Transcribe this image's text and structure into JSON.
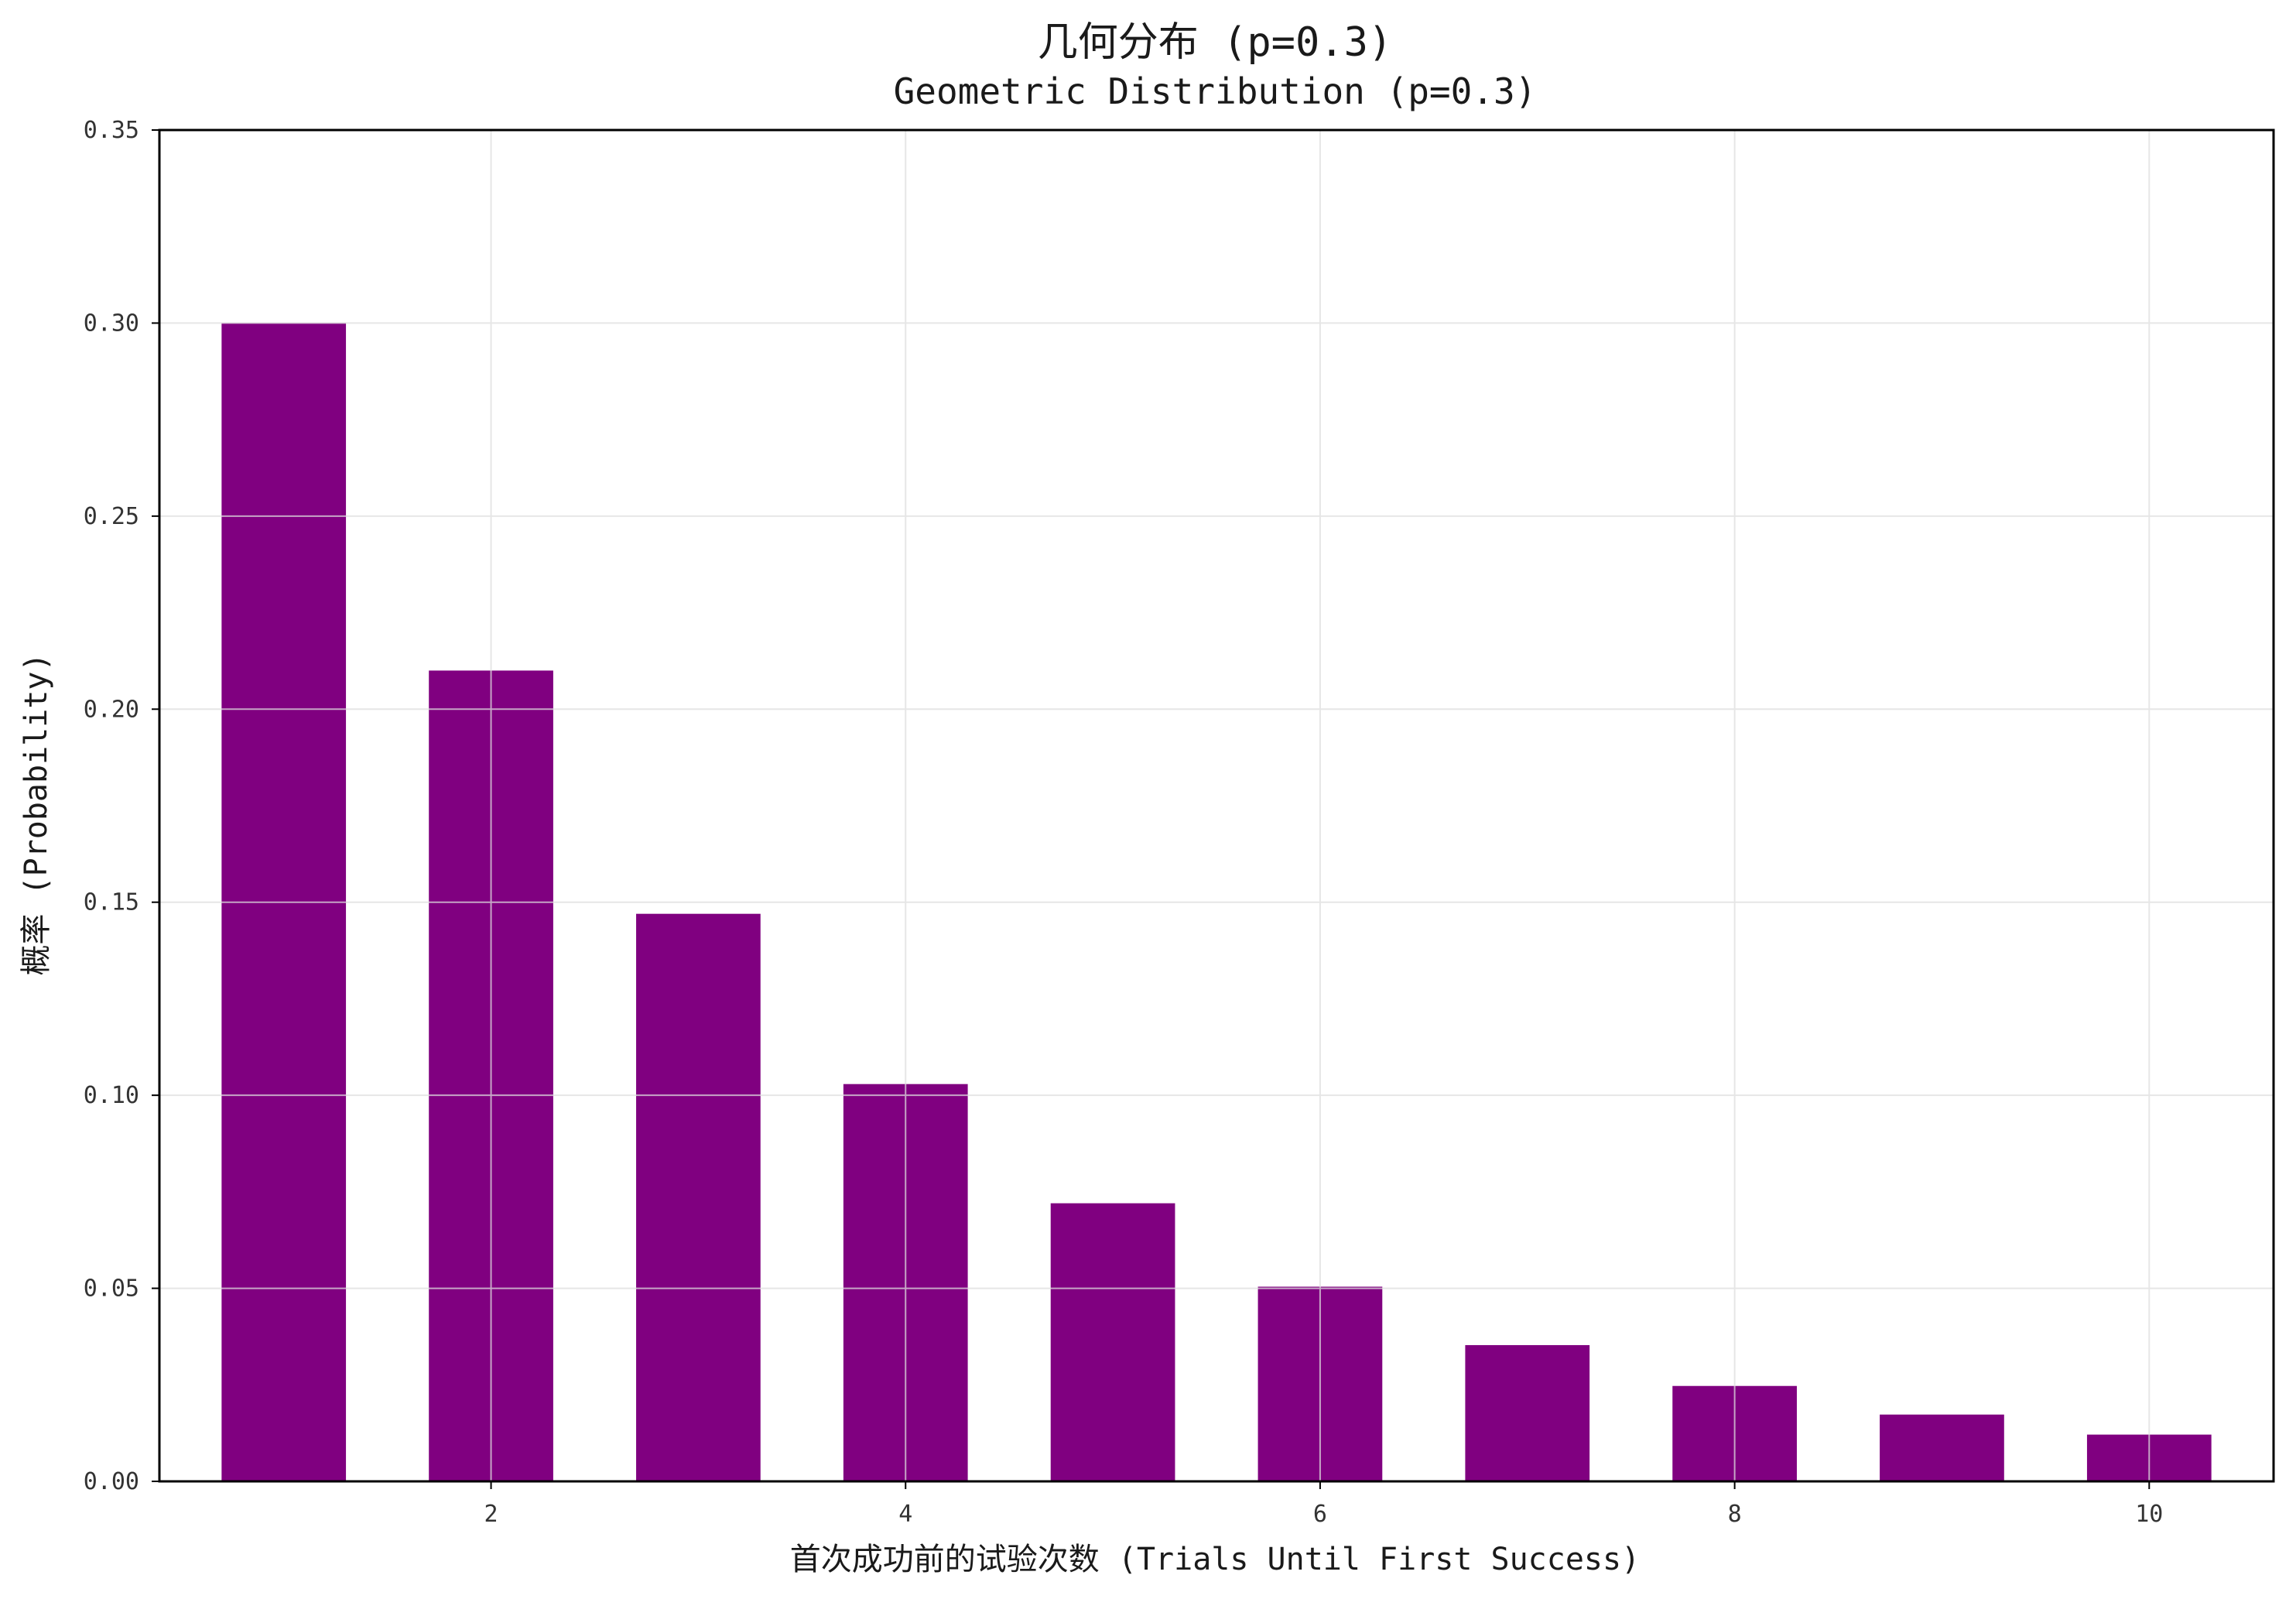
{
  "chart_data": {
    "type": "bar",
    "title": "几何分布 (p=0.3)",
    "subtitle": "Geometric Distribution (p=0.3)",
    "xlabel": "首次成功前的试验次数 (Trials Until First Success)",
    "ylabel": "概率 (Probability)",
    "x": [
      1,
      2,
      3,
      4,
      5,
      6,
      7,
      8,
      9,
      10
    ],
    "values": [
      0.3,
      0.21,
      0.147,
      0.1029,
      0.07203,
      0.05042,
      0.03529,
      0.02471,
      0.0173,
      0.01211
    ],
    "xlim": [
      0.4,
      10.6
    ],
    "ylim": [
      0,
      0.35
    ],
    "xticks": [
      "2",
      "4",
      "6",
      "8",
      "10"
    ],
    "yticks": [
      "0.00",
      "0.05",
      "0.10",
      "0.15",
      "0.20",
      "0.25",
      "0.30",
      "0.35"
    ],
    "grid": true,
    "bar_color": "#800080",
    "grid_color": "#dedede",
    "axis_color": "#000000"
  }
}
